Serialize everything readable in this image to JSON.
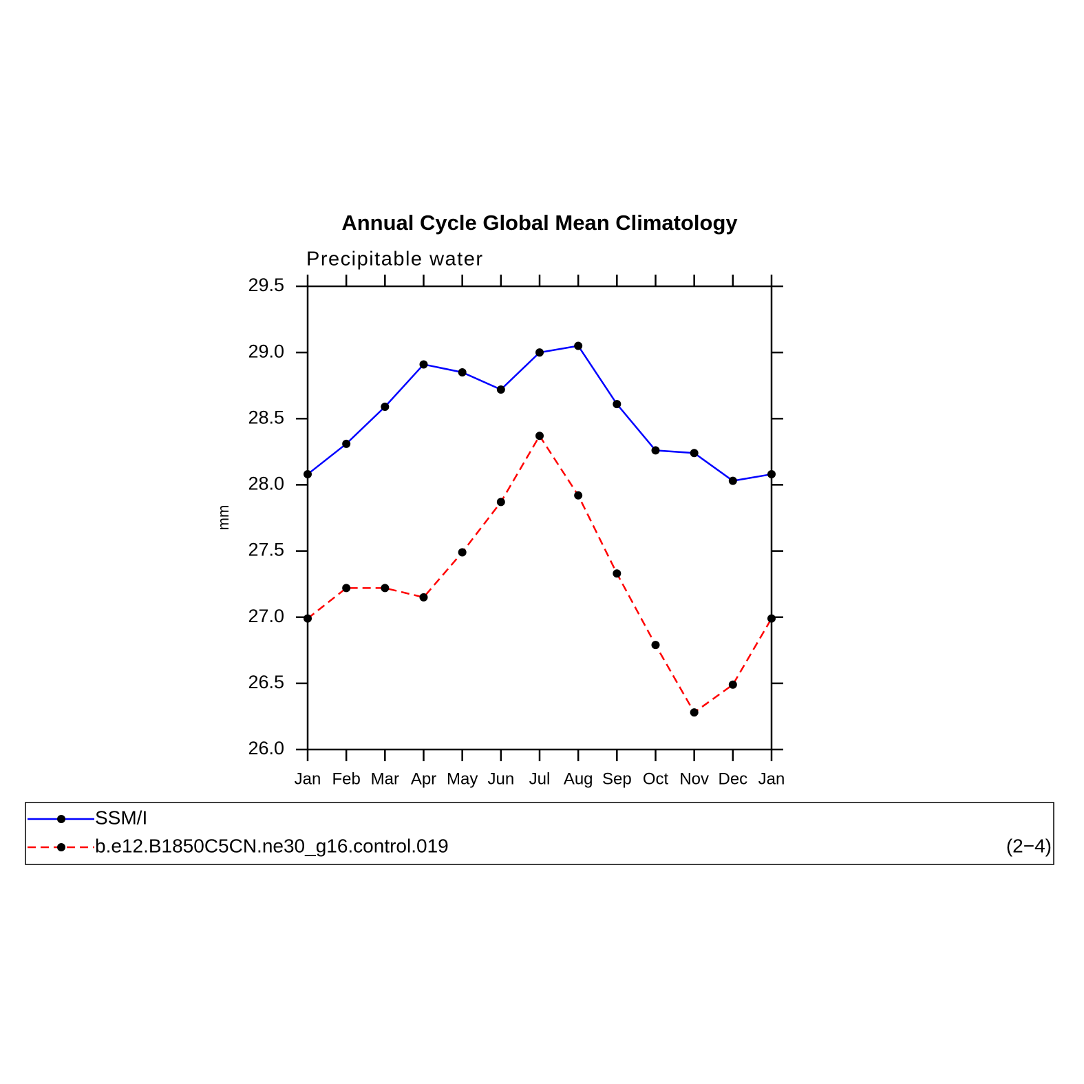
{
  "chart_data": {
    "type": "line",
    "title": "Annual Cycle Global Mean Climatology",
    "subtitle": "Precipitable water",
    "y_label": "mm",
    "categories": [
      "Jan",
      "Feb",
      "Mar",
      "Apr",
      "May",
      "Jun",
      "Jul",
      "Aug",
      "Sep",
      "Oct",
      "Nov",
      "Dec",
      "Jan"
    ],
    "series": [
      {
        "name": "SSM/I",
        "color": "#0000ff",
        "line_style": "solid",
        "values": [
          28.08,
          28.31,
          28.59,
          28.91,
          28.85,
          28.72,
          29.0,
          29.05,
          28.61,
          28.26,
          28.24,
          28.03,
          28.08
        ]
      },
      {
        "name": "b.e12.B1850C5CN.ne30_g16.control.019",
        "color": "#ff0000",
        "line_style": "dashed",
        "values": [
          26.99,
          27.22,
          27.22,
          27.15,
          27.49,
          27.87,
          28.37,
          27.92,
          27.33,
          26.79,
          26.28,
          26.49,
          26.99
        ]
      }
    ],
    "marker_color": "#000000",
    "ylim": [
      26.0,
      29.5
    ],
    "yticks": [
      {
        "value": 26,
        "label": "26.0"
      },
      26.5,
      {
        "value": 27,
        "label": "27.0"
      },
      27.5,
      {
        "value": 28,
        "label": "28.0"
      },
      28.5,
      {
        "value": 29,
        "label": "29.0"
      },
      29.5
    ],
    "grid": false,
    "legend": "bottom",
    "panel_label": "(2−4)"
  }
}
